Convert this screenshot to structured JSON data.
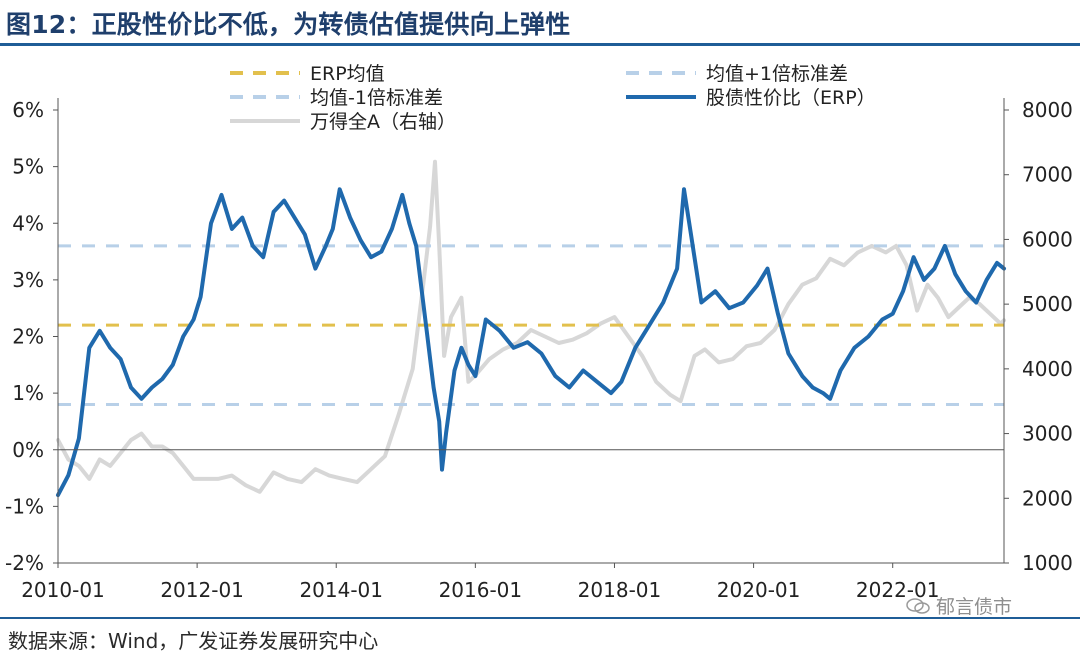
{
  "page": {
    "title": "图12：正股性价比不低，为转债估值提供向上弹性",
    "source": "数据来源：Wind，广发证券发展研究中心",
    "watermark": "郁言债市"
  },
  "colors": {
    "title": "#1f3f6c",
    "rule": "#1f5d97",
    "erp_mean": "#e2c04d",
    "band": "#b8d0e8",
    "erp_line": "#1f69ad",
    "wind_a": "#d7d7d7"
  },
  "chart_data": {
    "type": "line",
    "x_ticks": [
      "2010-01",
      "2012-01",
      "2014-01",
      "2016-01",
      "2018-01",
      "2020-01",
      "2022-01"
    ],
    "y_left_ticks": [
      "6%",
      "5%",
      "4%",
      "3%",
      "2%",
      "1%",
      "0%",
      "-1%",
      "-2%"
    ],
    "y_right_ticks": [
      "8000",
      "7000",
      "6000",
      "5000",
      "4000",
      "3000",
      "2000",
      "1000"
    ],
    "y_left_range": [
      -2,
      6
    ],
    "y_right_range": [
      1000,
      8000
    ],
    "x_range": [
      "2010-01",
      "2023-08"
    ],
    "legend": {
      "erp_mean": "ERP均值",
      "mean_plus": "均值+1倍标准差",
      "mean_minus": "均值-1倍标准差",
      "erp": "股债性价比（ERP）",
      "wind_a": "万得全A（右轴）"
    },
    "series": [
      {
        "name": "ERP均值",
        "axis": "left",
        "style": "dashed",
        "values": [
          [
            2010.0,
            2.2
          ],
          [
            2023.6,
            2.2
          ]
        ]
      },
      {
        "name": "均值+1倍标准差",
        "axis": "left",
        "style": "dashed",
        "values": [
          [
            2010.0,
            3.6
          ],
          [
            2023.6,
            3.6
          ]
        ]
      },
      {
        "name": "均值-1倍标准差",
        "axis": "left",
        "style": "dashed",
        "values": [
          [
            2010.0,
            0.8
          ],
          [
            2023.6,
            0.8
          ]
        ]
      },
      {
        "name": "股债性价比（ERP）",
        "axis": "left",
        "style": "solid",
        "values": [
          [
            2010.0,
            -0.8
          ],
          [
            2010.15,
            -0.45
          ],
          [
            2010.3,
            0.2
          ],
          [
            2010.45,
            1.8
          ],
          [
            2010.6,
            2.1
          ],
          [
            2010.75,
            1.8
          ],
          [
            2010.9,
            1.6
          ],
          [
            2011.05,
            1.1
          ],
          [
            2011.2,
            0.9
          ],
          [
            2011.35,
            1.1
          ],
          [
            2011.5,
            1.25
          ],
          [
            2011.65,
            1.5
          ],
          [
            2011.8,
            2.0
          ],
          [
            2011.95,
            2.3
          ],
          [
            2012.05,
            2.7
          ],
          [
            2012.2,
            4.0
          ],
          [
            2012.35,
            4.5
          ],
          [
            2012.5,
            3.9
          ],
          [
            2012.65,
            4.1
          ],
          [
            2012.8,
            3.6
          ],
          [
            2012.95,
            3.4
          ],
          [
            2013.1,
            4.2
          ],
          [
            2013.25,
            4.4
          ],
          [
            2013.4,
            4.1
          ],
          [
            2013.55,
            3.8
          ],
          [
            2013.7,
            3.2
          ],
          [
            2013.85,
            3.6
          ],
          [
            2013.95,
            3.9
          ],
          [
            2014.05,
            4.6
          ],
          [
            2014.2,
            4.1
          ],
          [
            2014.35,
            3.7
          ],
          [
            2014.5,
            3.4
          ],
          [
            2014.65,
            3.5
          ],
          [
            2014.8,
            3.9
          ],
          [
            2014.95,
            4.5
          ],
          [
            2015.05,
            4.0
          ],
          [
            2015.15,
            3.6
          ],
          [
            2015.3,
            2.1
          ],
          [
            2015.4,
            1.1
          ],
          [
            2015.48,
            0.5
          ],
          [
            2015.52,
            -0.35
          ],
          [
            2015.58,
            0.3
          ],
          [
            2015.7,
            1.4
          ],
          [
            2015.8,
            1.8
          ],
          [
            2015.9,
            1.5
          ],
          [
            2016.0,
            1.3
          ],
          [
            2016.15,
            2.3
          ],
          [
            2016.35,
            2.1
          ],
          [
            2016.55,
            1.8
          ],
          [
            2016.75,
            1.9
          ],
          [
            2016.95,
            1.7
          ],
          [
            2017.15,
            1.3
          ],
          [
            2017.35,
            1.1
          ],
          [
            2017.55,
            1.4
          ],
          [
            2017.75,
            1.2
          ],
          [
            2017.95,
            1.0
          ],
          [
            2018.1,
            1.2
          ],
          [
            2018.3,
            1.8
          ],
          [
            2018.5,
            2.2
          ],
          [
            2018.7,
            2.6
          ],
          [
            2018.9,
            3.2
          ],
          [
            2019.0,
            4.6
          ],
          [
            2019.1,
            3.8
          ],
          [
            2019.25,
            2.6
          ],
          [
            2019.45,
            2.8
          ],
          [
            2019.65,
            2.5
          ],
          [
            2019.85,
            2.6
          ],
          [
            2020.05,
            2.9
          ],
          [
            2020.2,
            3.2
          ],
          [
            2020.35,
            2.4
          ],
          [
            2020.5,
            1.7
          ],
          [
            2020.7,
            1.3
          ],
          [
            2020.85,
            1.1
          ],
          [
            2021.0,
            1.0
          ],
          [
            2021.1,
            0.9
          ],
          [
            2021.25,
            1.4
          ],
          [
            2021.45,
            1.8
          ],
          [
            2021.65,
            2.0
          ],
          [
            2021.85,
            2.3
          ],
          [
            2022.0,
            2.4
          ],
          [
            2022.15,
            2.8
          ],
          [
            2022.3,
            3.4
          ],
          [
            2022.45,
            3.0
          ],
          [
            2022.6,
            3.2
          ],
          [
            2022.75,
            3.6
          ],
          [
            2022.9,
            3.1
          ],
          [
            2023.05,
            2.8
          ],
          [
            2023.2,
            2.6
          ],
          [
            2023.35,
            3.0
          ],
          [
            2023.5,
            3.3
          ],
          [
            2023.6,
            3.2
          ]
        ]
      },
      {
        "name": "万得全A（右轴）",
        "axis": "right",
        "style": "solid",
        "values": [
          [
            2010.0,
            2900
          ],
          [
            2010.15,
            2600
          ],
          [
            2010.3,
            2500
          ],
          [
            2010.45,
            2300
          ],
          [
            2010.6,
            2600
          ],
          [
            2010.75,
            2500
          ],
          [
            2010.9,
            2700
          ],
          [
            2011.05,
            2900
          ],
          [
            2011.2,
            3000
          ],
          [
            2011.35,
            2800
          ],
          [
            2011.5,
            2800
          ],
          [
            2011.65,
            2700
          ],
          [
            2011.8,
            2500
          ],
          [
            2011.95,
            2300
          ],
          [
            2012.1,
            2300
          ],
          [
            2012.3,
            2300
          ],
          [
            2012.5,
            2350
          ],
          [
            2012.7,
            2200
          ],
          [
            2012.9,
            2100
          ],
          [
            2013.1,
            2400
          ],
          [
            2013.3,
            2300
          ],
          [
            2013.5,
            2250
          ],
          [
            2013.7,
            2450
          ],
          [
            2013.9,
            2350
          ],
          [
            2014.1,
            2300
          ],
          [
            2014.3,
            2250
          ],
          [
            2014.5,
            2450
          ],
          [
            2014.7,
            2650
          ],
          [
            2014.9,
            3300
          ],
          [
            2015.1,
            4000
          ],
          [
            2015.25,
            5300
          ],
          [
            2015.35,
            6200
          ],
          [
            2015.42,
            7200
          ],
          [
            2015.48,
            5900
          ],
          [
            2015.55,
            4200
          ],
          [
            2015.65,
            4800
          ],
          [
            2015.8,
            5100
          ],
          [
            2015.9,
            3800
          ],
          [
            2016.0,
            3900
          ],
          [
            2016.2,
            4150
          ],
          [
            2016.4,
            4300
          ],
          [
            2016.6,
            4400
          ],
          [
            2016.8,
            4600
          ],
          [
            2017.0,
            4500
          ],
          [
            2017.2,
            4400
          ],
          [
            2017.4,
            4450
          ],
          [
            2017.6,
            4550
          ],
          [
            2017.8,
            4700
          ],
          [
            2018.0,
            4800
          ],
          [
            2018.2,
            4500
          ],
          [
            2018.4,
            4200
          ],
          [
            2018.6,
            3800
          ],
          [
            2018.8,
            3600
          ],
          [
            2018.95,
            3500
          ],
          [
            2019.15,
            4200
          ],
          [
            2019.3,
            4300
          ],
          [
            2019.5,
            4100
          ],
          [
            2019.7,
            4150
          ],
          [
            2019.9,
            4350
          ],
          [
            2020.1,
            4400
          ],
          [
            2020.3,
            4600
          ],
          [
            2020.5,
            5000
          ],
          [
            2020.7,
            5300
          ],
          [
            2020.9,
            5400
          ],
          [
            2021.1,
            5700
          ],
          [
            2021.3,
            5600
          ],
          [
            2021.5,
            5800
          ],
          [
            2021.7,
            5900
          ],
          [
            2021.9,
            5800
          ],
          [
            2022.05,
            5900
          ],
          [
            2022.2,
            5600
          ],
          [
            2022.35,
            4900
          ],
          [
            2022.5,
            5300
          ],
          [
            2022.65,
            5100
          ],
          [
            2022.8,
            4800
          ],
          [
            2022.95,
            4950
          ],
          [
            2023.1,
            5100
          ],
          [
            2023.25,
            5000
          ],
          [
            2023.4,
            4850
          ],
          [
            2023.55,
            4700
          ],
          [
            2023.6,
            4750
          ]
        ]
      }
    ],
    "title": "图12：正股性价比不低，为转债估值提供向上弹性",
    "grid": false,
    "legend_position": "top"
  }
}
